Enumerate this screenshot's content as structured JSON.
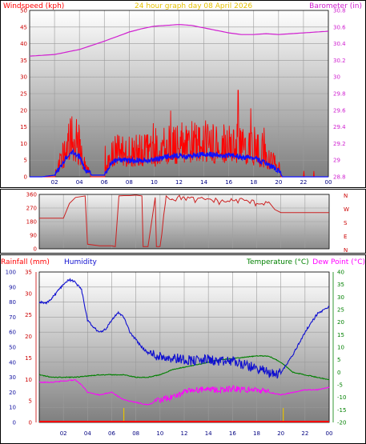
{
  "colors": {
    "wind": "#ff0000",
    "gust": "#ff0000",
    "avg": "#1010ff",
    "baro": "#d020d0",
    "dir": "#cc2020",
    "rain": "#ff0000",
    "humidity": "#1010d0",
    "temperature": "#008000",
    "dewpoint": "#ff00ff",
    "title": "#e6c200",
    "axis_red": "#cc0000"
  },
  "header": {
    "title": "24 hour graph day   08 April 2026"
  },
  "chart_data": [
    {
      "type": "line",
      "id": "wind-baro",
      "title": "24 hour graph day   08 April 2026",
      "ylabel": "Windspeed (kph)",
      "y2label": "Barometer (in)",
      "ylim": [
        0,
        50
      ],
      "y2lim": [
        28.8,
        30.8
      ],
      "yticks": [
        "0",
        "5",
        "10",
        "15",
        "20",
        "25",
        "30",
        "35",
        "40",
        "45",
        "50"
      ],
      "y2ticks": [
        "28.8",
        "29",
        "29.2",
        "29.4",
        "29.6",
        "29.8",
        "30",
        "30.2",
        "30.4",
        "30.6",
        "30.8"
      ],
      "xticks": [
        "02",
        "04",
        "06",
        "08",
        "10",
        "12",
        "14",
        "16",
        "18",
        "20",
        "22",
        "00"
      ],
      "grid": true,
      "series": [
        {
          "key": "baro",
          "x": [
            0,
            2,
            4,
            6,
            8,
            9,
            10,
            11,
            12,
            13,
            14,
            15,
            16,
            17,
            18,
            19,
            20,
            21,
            22,
            23,
            24
          ],
          "values": [
            30.25,
            30.27,
            30.33,
            30.43,
            30.54,
            30.58,
            30.61,
            30.62,
            30.63,
            30.62,
            30.59,
            30.56,
            30.53,
            30.51,
            30.51,
            30.52,
            30.51,
            30.52,
            30.53,
            30.54,
            30.55
          ]
        },
        {
          "key": "wind_avg",
          "x": [
            0,
            1,
            2,
            2.5,
            3,
            3.5,
            4,
            4.5,
            5,
            5.5,
            6,
            6.5,
            7,
            8,
            9,
            10,
            11,
            12,
            13,
            14,
            15,
            16,
            17,
            18,
            19,
            20,
            20.3,
            22,
            24
          ],
          "values": [
            0,
            0,
            0.5,
            3,
            6,
            7.5,
            6,
            2,
            0.5,
            0.5,
            0.5,
            4,
            5,
            5,
            5,
            5,
            6,
            6.5,
            6,
            7,
            6.5,
            6.5,
            6,
            5.5,
            4,
            2,
            0,
            0,
            0
          ]
        }
      ]
    },
    {
      "type": "line",
      "id": "wind-direction",
      "yticks": [
        "0",
        "90",
        "180",
        "270",
        "360"
      ],
      "y2ticks": [
        "N",
        "W",
        "S",
        "E",
        "N"
      ],
      "ylim": [
        0,
        360
      ],
      "grid": true,
      "series": [
        {
          "key": "direction",
          "x": [
            0,
            2,
            2.5,
            3,
            3.8,
            4,
            5,
            6,
            6.3,
            6.6,
            7,
            7.5,
            8,
            8.5,
            8.6,
            9,
            9.6,
            9.7,
            10,
            10.5,
            11,
            12,
            13,
            14,
            15,
            16,
            17,
            18,
            19,
            19.5,
            20,
            21,
            22,
            23,
            24
          ],
          "values": [
            202,
            202,
            300,
            340,
            350,
            30,
            20,
            20,
            15,
            350,
            352,
            352,
            355,
            350,
            15,
            15,
            340,
            15,
            15,
            350,
            330,
            340,
            320,
            330,
            310,
            320,
            320,
            300,
            310,
            260,
            240,
            240,
            240,
            240,
            240
          ]
        }
      ]
    },
    {
      "type": "line",
      "id": "rain-hum-temp",
      "ylabel": "Rainfall (mm)",
      "y2label": "Humidity",
      "y3label": "Temperature (°C)",
      "y4label": "Dew Point (°C)",
      "rain_ticks": [
        "0",
        "5",
        "10",
        "15",
        "20",
        "25",
        "30",
        "35"
      ],
      "hum_ticks": [
        "0",
        "10",
        "20",
        "30",
        "40",
        "50",
        "60",
        "70",
        "80",
        "90",
        "100"
      ],
      "temp_ticks": [
        "-20",
        "-15",
        "-10",
        "-5",
        "0",
        "5",
        "10",
        "15",
        "20",
        "25",
        "30",
        "35",
        "40"
      ],
      "xticks": [
        "02",
        "04",
        "06",
        "08",
        "10",
        "12",
        "14",
        "16",
        "18",
        "20",
        "22",
        "00"
      ],
      "ylim": [
        0,
        100
      ],
      "tlim": [
        -20,
        40
      ],
      "grid": true,
      "series": [
        {
          "key": "humidity",
          "x": [
            0,
            0.5,
            1,
            2,
            2.5,
            3,
            3.5,
            4,
            4.5,
            5,
            5.5,
            6,
            6.5,
            7,
            7.5,
            8,
            8.5,
            9,
            10,
            11,
            12,
            13,
            14,
            15,
            16,
            17,
            18,
            19,
            19.5,
            20,
            21,
            22,
            23,
            24
          ],
          "values": [
            80,
            79,
            82,
            92,
            95,
            93,
            88,
            68,
            63,
            60,
            62,
            68,
            73,
            70,
            60,
            55,
            50,
            46,
            44,
            43,
            42,
            41,
            42,
            40,
            41,
            38,
            36,
            33,
            32,
            33,
            45,
            60,
            72,
            77
          ]
        },
        {
          "key": "temperature",
          "x": [
            0,
            1,
            2,
            3,
            4,
            5,
            6,
            7,
            8,
            9,
            10,
            11,
            12,
            13,
            14,
            15,
            16,
            17,
            18,
            19,
            20,
            21,
            22,
            23,
            24
          ],
          "values": [
            -1,
            -2,
            -2,
            -2,
            -1.5,
            -1,
            -1,
            -1,
            -2,
            -2,
            -1,
            1,
            2,
            3,
            4,
            5,
            5.5,
            6,
            6.5,
            6.5,
            4,
            0,
            -1,
            -2,
            -3
          ]
        },
        {
          "key": "dewpoint",
          "x": [
            0,
            1,
            2,
            3,
            3.5,
            4,
            5,
            6,
            7,
            8,
            9,
            10,
            11,
            12,
            13,
            14,
            15,
            16,
            17,
            18,
            19,
            20,
            21,
            22,
            23,
            24
          ],
          "values": [
            -4,
            -4,
            -3.5,
            -3,
            -5,
            -8,
            -9,
            -8,
            -11,
            -12,
            -13,
            -11,
            -10,
            -8,
            -7,
            -7,
            -7,
            -6.5,
            -7,
            -7,
            -8,
            -9,
            -8,
            -7,
            -7,
            -6
          ]
        },
        {
          "key": "rain",
          "x": [
            0,
            24
          ],
          "values": [
            0,
            0
          ]
        }
      ],
      "markers_x": [
        7,
        20.2
      ]
    }
  ]
}
